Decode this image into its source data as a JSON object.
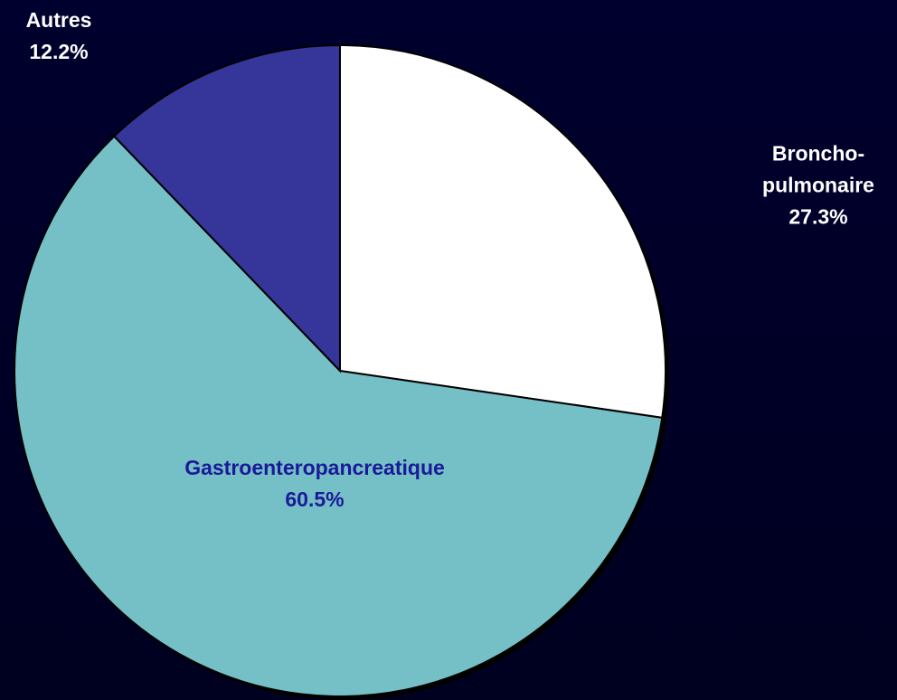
{
  "chart_data": {
    "type": "pie",
    "categories": [
      "Broncho-pulmonaire",
      "Gastroenteropancreatique",
      "Autres"
    ],
    "values": [
      27.3,
      60.5,
      12.2
    ],
    "value_labels": [
      "27.3%",
      "60.5%",
      "12.2%"
    ],
    "colors": [
      "#ffffff",
      "#75bfc6",
      "#35359a"
    ],
    "label_colors": [
      "#ffffff",
      "#1a1a99",
      "#ffffff"
    ]
  }
}
